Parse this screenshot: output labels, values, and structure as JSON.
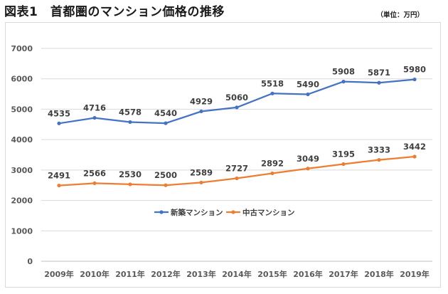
{
  "header": {
    "title": "図表1　首都圏のマンション価格の推移",
    "unit": "（単位：万円）"
  },
  "chart_data": {
    "type": "line",
    "categories": [
      "2009年",
      "2010年",
      "2011年",
      "2012年",
      "2013年",
      "2014年",
      "2015年",
      "2016年",
      "2017年",
      "2018年",
      "2019年"
    ],
    "series": [
      {
        "name": "新築マンション",
        "color": "#4472C4",
        "values": [
          4535,
          4716,
          4578,
          4540,
          4929,
          5060,
          5518,
          5490,
          5908,
          5871,
          5980
        ]
      },
      {
        "name": "中古マンション",
        "color": "#ED7D31",
        "values": [
          2491,
          2566,
          2530,
          2500,
          2589,
          2727,
          2892,
          3049,
          3195,
          3333,
          3442
        ]
      }
    ],
    "y_ticks": [
      0,
      1000,
      2000,
      3000,
      4000,
      5000,
      6000,
      7000
    ],
    "ylim": [
      0,
      7000
    ],
    "grid": true,
    "legend_position": "center"
  }
}
